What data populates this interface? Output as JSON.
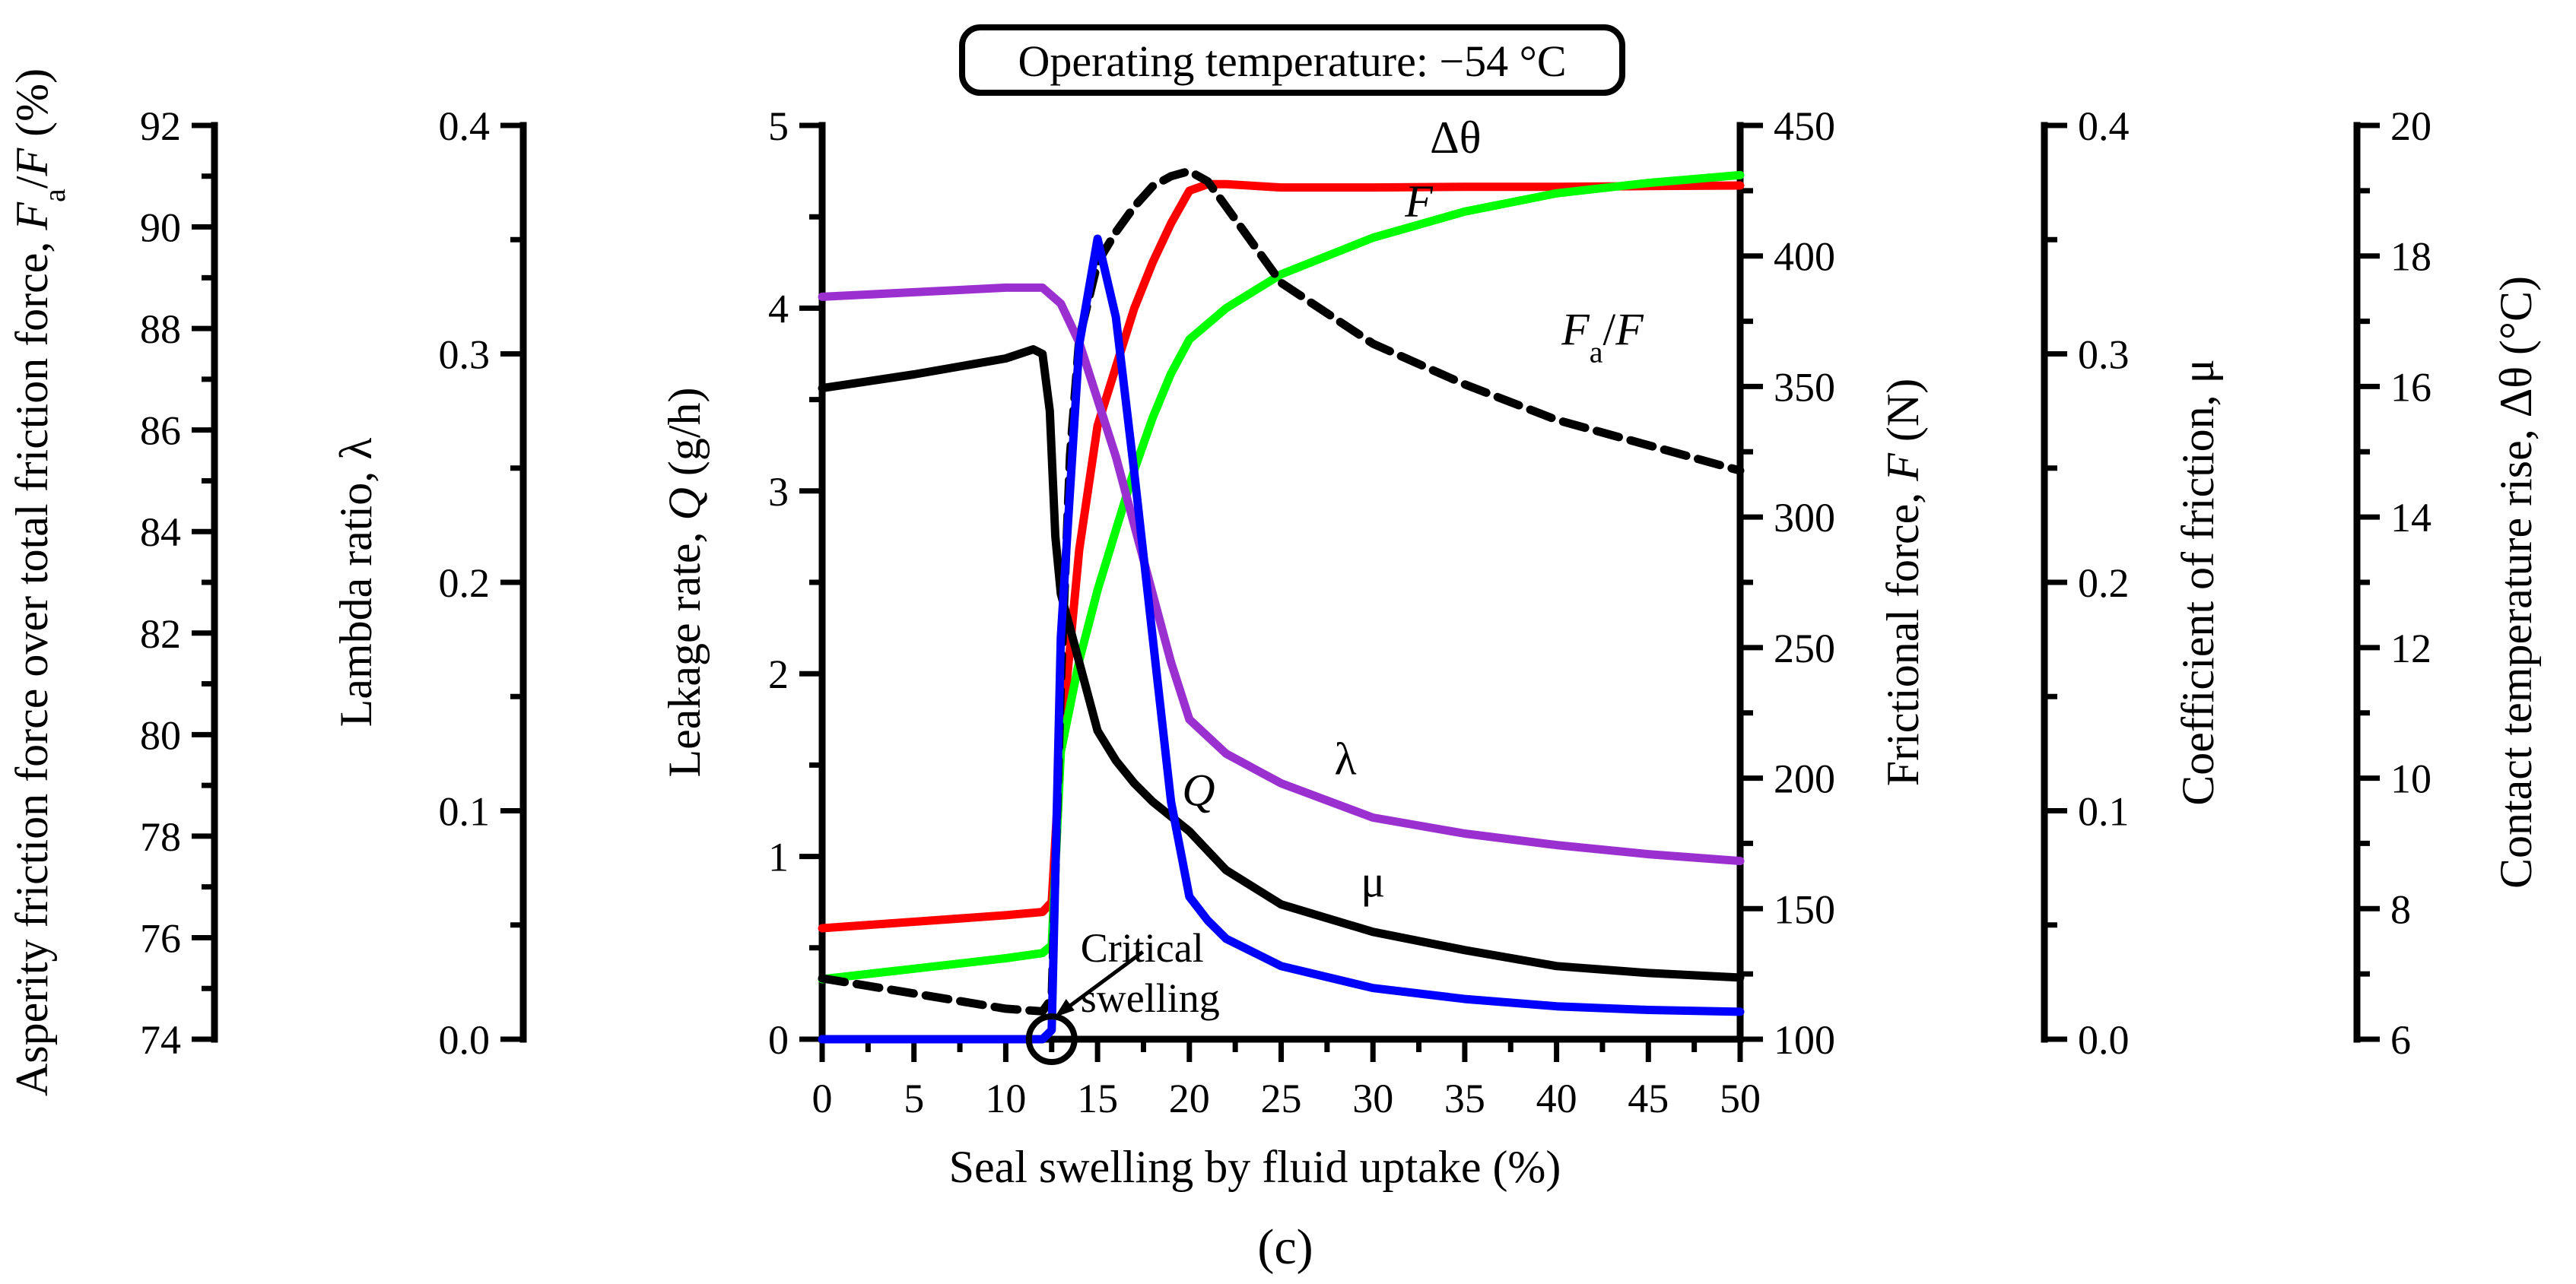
{
  "chart_data": {
    "type": "line",
    "banner": "Operating temperature: −54 °C",
    "panel_label": "(c)",
    "xlabel": "Seal swelling by fluid uptake (%)",
    "xlim": [
      0,
      50
    ],
    "x_ticks": [
      0,
      5,
      10,
      15,
      20,
      25,
      30,
      35,
      40,
      45,
      50
    ],
    "x_tick_labels": [
      "0",
      "5",
      "10",
      "15",
      "20",
      "25",
      "30",
      "35",
      "40",
      "45",
      "50"
    ],
    "axes": [
      {
        "id": "fa",
        "title_parts": [
          [
            "Asperity friction force over total friction force, ",
            ""
          ],
          [
            "F",
            "i"
          ],
          [
            "a",
            "sub"
          ],
          [
            "/",
            ""
          ],
          [
            "F",
            "i"
          ],
          [
            " (%)",
            ""
          ]
        ],
        "range": [
          74,
          92
        ],
        "ticks": [
          74,
          76,
          78,
          80,
          82,
          84,
          86,
          88,
          90,
          92
        ],
        "tick_labels": [
          "74",
          "76",
          "78",
          "80",
          "82",
          "84",
          "86",
          "88",
          "90",
          "92"
        ]
      },
      {
        "id": "lambda",
        "title_parts": [
          [
            "Lambda ratio, λ",
            ""
          ]
        ],
        "range": [
          0,
          0.4
        ],
        "ticks": [
          0,
          0.1,
          0.2,
          0.3,
          0.4
        ],
        "tick_labels": [
          "0.0",
          "0.1",
          "0.2",
          "0.3",
          "0.4"
        ]
      },
      {
        "id": "Q",
        "title_parts": [
          [
            "Leakage rate, ",
            ""
          ],
          [
            "Q",
            "i"
          ],
          [
            " (g/h)",
            ""
          ]
        ],
        "range": [
          0,
          5
        ],
        "ticks": [
          0,
          1,
          2,
          3,
          4,
          5
        ],
        "tick_labels": [
          "0",
          "1",
          "2",
          "3",
          "4",
          "5"
        ]
      },
      {
        "id": "F",
        "title_parts": [
          [
            "Frictional force, ",
            ""
          ],
          [
            "F",
            "i"
          ],
          [
            " (N)",
            ""
          ]
        ],
        "range": [
          100,
          450
        ],
        "ticks": [
          100,
          150,
          200,
          250,
          300,
          350,
          400,
          450
        ],
        "tick_labels": [
          "100",
          "150",
          "200",
          "250",
          "300",
          "350",
          "400",
          "450"
        ]
      },
      {
        "id": "mu",
        "title_parts": [
          [
            "Coefficient of friction, μ",
            ""
          ]
        ],
        "range": [
          0,
          0.4
        ],
        "ticks": [
          0,
          0.1,
          0.2,
          0.3,
          0.4
        ],
        "tick_labels": [
          "0.0",
          "0.1",
          "0.2",
          "0.3",
          "0.4"
        ]
      },
      {
        "id": "dtheta",
        "title_parts": [
          [
            "Contact temperature rise, Δθ (°C)",
            ""
          ]
        ],
        "range": [
          6,
          20
        ],
        "ticks": [
          6,
          8,
          10,
          12,
          14,
          16,
          18,
          20
        ],
        "tick_labels": [
          "6",
          "8",
          "10",
          "12",
          "14",
          "16",
          "18",
          "20"
        ]
      }
    ],
    "series": [
      {
        "name": "Δθ",
        "axis": "dtheta",
        "color": "#ff0000",
        "x": [
          0,
          5,
          10,
          12,
          12.5,
          13,
          14,
          15,
          16,
          17,
          18,
          19,
          20,
          21,
          22,
          25,
          30,
          35,
          40,
          45,
          50
        ],
        "y": [
          7.7,
          7.8,
          7.9,
          7.95,
          8.1,
          10.5,
          13.5,
          15.4,
          16.3,
          17.2,
          17.9,
          18.5,
          19.0,
          19.1,
          19.1,
          19.05,
          19.05,
          19.06,
          19.06,
          19.07,
          19.08
        ]
      },
      {
        "name": "F",
        "axis": "F",
        "color": "#00ff00",
        "x": [
          0,
          5,
          10,
          12,
          12.5,
          13,
          14,
          15,
          16,
          17,
          18,
          19,
          20,
          22,
          25,
          30,
          35,
          40,
          45,
          50
        ],
        "y": [
          123,
          127,
          131,
          133,
          136,
          210,
          245,
          272,
          295,
          318,
          338,
          355,
          368,
          380,
          393,
          407,
          417,
          424,
          428,
          431
        ]
      },
      {
        "name": "F_a/F",
        "axis": "fa",
        "color": "#000000",
        "dashed": true,
        "x": [
          0,
          5,
          10,
          12,
          12.5,
          13,
          13.5,
          14,
          15,
          16,
          17,
          18,
          19,
          20,
          21,
          22,
          25,
          30,
          35,
          40,
          45,
          50
        ],
        "y": [
          75.2,
          74.9,
          74.6,
          74.55,
          74.8,
          81.0,
          85.5,
          87.8,
          89.3,
          89.9,
          90.4,
          90.8,
          91.0,
          91.1,
          90.9,
          90.4,
          88.9,
          87.7,
          86.9,
          86.2,
          85.7,
          85.2
        ]
      },
      {
        "name": "λ",
        "axis": "lambda",
        "color": "#9b30d0",
        "x": [
          0,
          5,
          10,
          12,
          13,
          14,
          15,
          16,
          17,
          18,
          19,
          20,
          22,
          25,
          30,
          35,
          40,
          45,
          50
        ],
        "y": [
          0.325,
          0.327,
          0.329,
          0.329,
          0.322,
          0.305,
          0.28,
          0.255,
          0.225,
          0.195,
          0.165,
          0.14,
          0.125,
          0.112,
          0.097,
          0.09,
          0.085,
          0.081,
          0.078
        ]
      },
      {
        "name": "μ",
        "axis": "mu",
        "color": "#000000",
        "x": [
          0,
          5,
          10,
          11.5,
          12,
          12.4,
          12.7,
          13,
          14,
          15,
          16,
          17,
          18,
          20,
          22,
          25,
          30,
          35,
          40,
          45,
          50
        ],
        "y": [
          0.285,
          0.291,
          0.298,
          0.302,
          0.3,
          0.275,
          0.22,
          0.195,
          0.165,
          0.135,
          0.122,
          0.112,
          0.104,
          0.091,
          0.074,
          0.059,
          0.047,
          0.039,
          0.032,
          0.029,
          0.027
        ]
      },
      {
        "name": "Q",
        "axis": "Q",
        "color": "#0000ff",
        "x": [
          0,
          5,
          10,
          12,
          12.5,
          13,
          14,
          15,
          16,
          17,
          18,
          19,
          20,
          21,
          22,
          25,
          30,
          35,
          40,
          45,
          50
        ],
        "y": [
          0,
          0,
          0,
          0,
          0.05,
          2.2,
          3.8,
          4.38,
          3.95,
          3.1,
          2.2,
          1.3,
          0.78,
          0.65,
          0.55,
          0.4,
          0.28,
          0.22,
          0.18,
          0.16,
          0.15
        ]
      }
    ],
    "curve_labels": [
      {
        "name": "Δθ",
        "x": 34.5,
        "axis": "Q",
        "y": 4.85
      },
      {
        "name": "F",
        "x": 32.5,
        "axis": "Q",
        "y": 4.5,
        "italic": true
      },
      {
        "name": "F_a/F",
        "x": 42.5,
        "axis": "Q",
        "y": 3.8,
        "italic": true
      },
      {
        "name": "λ",
        "x": 28.5,
        "axis": "Q",
        "y": 1.45
      },
      {
        "name": "Q",
        "x": 20.5,
        "axis": "Q",
        "y": 1.28,
        "italic": true
      },
      {
        "name": "μ",
        "x": 30.0,
        "axis": "Q",
        "y": 0.78
      }
    ],
    "annotation": {
      "line1": "Critical",
      "line2": "swelling",
      "x": 12.5
    }
  }
}
